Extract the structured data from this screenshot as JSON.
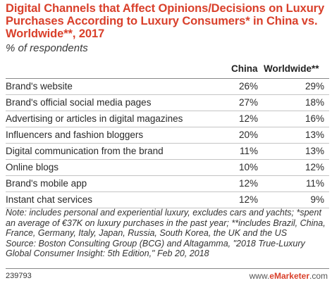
{
  "chart_data": {
    "type": "table",
    "title": "Digital Channels that Affect Opinions/Decisions on Luxury Purchases According to Luxury Consumers* in China vs. Worldwide**, 2017",
    "subtitle": "% of respondents",
    "columns": [
      "China",
      "Worldwide**"
    ],
    "rows": [
      {
        "label": "Brand's website",
        "china": "26%",
        "worldwide": "29%"
      },
      {
        "label": "Brand's official social media pages",
        "china": "27%",
        "worldwide": "18%"
      },
      {
        "label": "Advertising or articles in digital magazines",
        "china": "12%",
        "worldwide": "16%"
      },
      {
        "label": "Influencers and fashion bloggers",
        "china": "20%",
        "worldwide": "13%"
      },
      {
        "label": "Digital communication from the brand",
        "china": "11%",
        "worldwide": "13%"
      },
      {
        "label": "Online blogs",
        "china": "10%",
        "worldwide": "12%"
      },
      {
        "label": "Brand's mobile app",
        "china": "12%",
        "worldwide": "11%"
      },
      {
        "label": "Instant chat services",
        "china": "12%",
        "worldwide": "9%"
      }
    ],
    "note": "Note: includes personal and experiential luxury, excludes cars and yachts; *spent an average of €37K on luxury purchases in the past year; **includes Brazil, China, France, Germany, Italy, Japan, Russia, South Korea, the UK and the US",
    "source": "Source: Boston Consulting Group (BCG) and Altagamma, \"2018 True-Luxury Global Consumer Insight: 5th Edition,\" Feb 20, 2018",
    "chart_id": "239793",
    "brand_prefix": "www.",
    "brand_name": "eMarketer",
    "brand_suffix": ".com"
  },
  "colors": {
    "title": "#d9402b",
    "brand": "#d9402b"
  }
}
